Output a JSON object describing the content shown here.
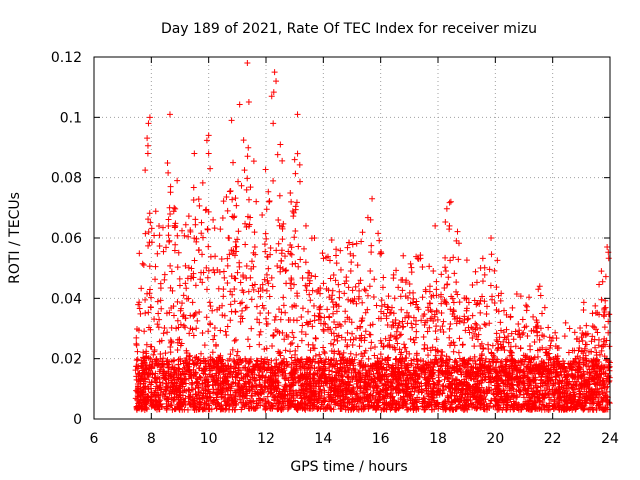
{
  "chart_data": {
    "type": "scatter",
    "title": "Day 189 of 2021, Rate Of TEC Index for receiver mizu",
    "xlabel": "GPS time / hours",
    "ylabel": "ROTI / TECUs",
    "xlim": [
      6,
      24
    ],
    "ylim": [
      0,
      0.12
    ],
    "x_ticks": [
      "6",
      "8",
      "10",
      "12",
      "14",
      "16",
      "18",
      "20",
      "22",
      "24"
    ],
    "y_ticks": [
      "0",
      "0.02",
      "0.04",
      "0.06",
      "0.08",
      "0.1",
      "0.12"
    ],
    "grid": true,
    "marker": "+",
    "color": "#ff0000",
    "series": [
      {
        "name": "ROTI",
        "data_start_hour": 7.45,
        "data_end_hour": 24.0,
        "baseline_range": [
          0.003,
          0.02
        ],
        "highlight_points": [
          {
            "x": 7.95,
            "y": 0.1
          },
          {
            "x": 7.9,
            "y": 0.098
          },
          {
            "x": 7.88,
            "y": 0.088
          },
          {
            "x": 8.65,
            "y": 0.101
          },
          {
            "x": 8.9,
            "y": 0.079
          },
          {
            "x": 9.5,
            "y": 0.088
          },
          {
            "x": 10.0,
            "y": 0.094
          },
          {
            "x": 10.0,
            "y": 0.088
          },
          {
            "x": 10.05,
            "y": 0.083
          },
          {
            "x": 10.8,
            "y": 0.099
          },
          {
            "x": 10.85,
            "y": 0.085
          },
          {
            "x": 11.35,
            "y": 0.118
          },
          {
            "x": 12.3,
            "y": 0.115
          },
          {
            "x": 12.35,
            "y": 0.112
          },
          {
            "x": 12.2,
            "y": 0.107
          },
          {
            "x": 12.25,
            "y": 0.098
          },
          {
            "x": 12.5,
            "y": 0.091
          },
          {
            "x": 13.1,
            "y": 0.101
          },
          {
            "x": 13.0,
            "y": 0.086
          },
          {
            "x": 15.7,
            "y": 0.073
          },
          {
            "x": 15.65,
            "y": 0.066
          },
          {
            "x": 18.45,
            "y": 0.072
          },
          {
            "x": 18.4,
            "y": 0.064
          },
          {
            "x": 17.9,
            "y": 0.064
          },
          {
            "x": 19.85,
            "y": 0.06
          },
          {
            "x": 23.9,
            "y": 0.057
          },
          {
            "x": 23.7,
            "y": 0.049
          },
          {
            "x": 21.55,
            "y": 0.044
          }
        ],
        "envelope": [
          {
            "hour": 7.5,
            "max": 0.045
          },
          {
            "hour": 7.9,
            "max": 0.1
          },
          {
            "hour": 8.3,
            "max": 0.065
          },
          {
            "hour": 8.7,
            "max": 0.101
          },
          {
            "hour": 9.1,
            "max": 0.06
          },
          {
            "hour": 9.5,
            "max": 0.088
          },
          {
            "hour": 10.0,
            "max": 0.094
          },
          {
            "hour": 10.4,
            "max": 0.07
          },
          {
            "hour": 10.8,
            "max": 0.099
          },
          {
            "hour": 11.3,
            "max": 0.118
          },
          {
            "hour": 11.8,
            "max": 0.065
          },
          {
            "hour": 12.3,
            "max": 0.115
          },
          {
            "hour": 12.7,
            "max": 0.08
          },
          {
            "hour": 13.1,
            "max": 0.101
          },
          {
            "hour": 13.6,
            "max": 0.062
          },
          {
            "hour": 14.2,
            "max": 0.06
          },
          {
            "hour": 14.7,
            "max": 0.06
          },
          {
            "hour": 15.2,
            "max": 0.059
          },
          {
            "hour": 15.7,
            "max": 0.073
          },
          {
            "hour": 16.2,
            "max": 0.05
          },
          {
            "hour": 16.8,
            "max": 0.056
          },
          {
            "hour": 17.4,
            "max": 0.058
          },
          {
            "hour": 17.9,
            "max": 0.064
          },
          {
            "hour": 18.4,
            "max": 0.072
          },
          {
            "hour": 18.9,
            "max": 0.055
          },
          {
            "hour": 19.4,
            "max": 0.052
          },
          {
            "hour": 19.9,
            "max": 0.06
          },
          {
            "hour": 20.4,
            "max": 0.04
          },
          {
            "hour": 20.9,
            "max": 0.043
          },
          {
            "hour": 21.5,
            "max": 0.044
          },
          {
            "hour": 22.0,
            "max": 0.035
          },
          {
            "hour": 22.5,
            "max": 0.032
          },
          {
            "hour": 23.0,
            "max": 0.038
          },
          {
            "hour": 23.5,
            "max": 0.042
          },
          {
            "hour": 23.9,
            "max": 0.057
          }
        ]
      }
    ]
  }
}
